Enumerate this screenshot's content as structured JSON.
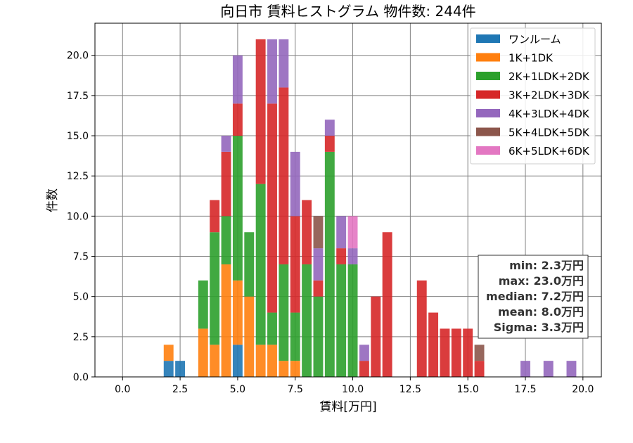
{
  "chart_data": {
    "type": "bar",
    "stacked": true,
    "title": "向日市 賃料ヒストグラム  物件数: 244件",
    "xlabel": "賃料[万円]",
    "ylabel": "件数",
    "xlim": [
      -1.2,
      20.8
    ],
    "ylim": [
      0,
      22
    ],
    "xticks": [
      "0.0",
      "2.5",
      "5.0",
      "7.5",
      "10.0",
      "12.5",
      "15.0",
      "17.5",
      "20.0"
    ],
    "yticks": [
      "0.0",
      "2.5",
      "5.0",
      "7.5",
      "10.0",
      "12.5",
      "15.0",
      "17.5",
      "20.0"
    ],
    "grid": true,
    "legend_position": "top-right",
    "bin_width": 0.5,
    "x": [
      2.0,
      2.5,
      3.5,
      4.0,
      4.5,
      5.0,
      5.5,
      6.0,
      6.5,
      7.0,
      7.5,
      8.0,
      8.5,
      9.0,
      9.5,
      10.0,
      10.5,
      11.0,
      11.5,
      13.0,
      13.5,
      14.0,
      14.5,
      15.0,
      15.5,
      17.5,
      18.5,
      19.5
    ],
    "series": [
      {
        "name": "ワンルーム",
        "color": "#1f77b4",
        "values": [
          1,
          1,
          0,
          0,
          0,
          2,
          0,
          0,
          0,
          0,
          0,
          0,
          0,
          0,
          0,
          0,
          0,
          0,
          0,
          0,
          0,
          0,
          0,
          0,
          0,
          0,
          0,
          0
        ]
      },
      {
        "name": "1K+1DK",
        "color": "#ff7f0e",
        "values": [
          1,
          0,
          3,
          2,
          7,
          4,
          5,
          2,
          2,
          1,
          1,
          0,
          0,
          0,
          0,
          0,
          0,
          0,
          0,
          0,
          0,
          0,
          0,
          0,
          0,
          0,
          0,
          0
        ]
      },
      {
        "name": "2K+1LDK+2DK",
        "color": "#2ca02c",
        "values": [
          0,
          0,
          3,
          7,
          3,
          9,
          4,
          10,
          2,
          6,
          3,
          7,
          5,
          14,
          7,
          7,
          0,
          0,
          0,
          0,
          0,
          0,
          0,
          0,
          0,
          0,
          0,
          0
        ]
      },
      {
        "name": "3K+2LDK+3DK",
        "color": "#d62728",
        "values": [
          0,
          0,
          0,
          2,
          4,
          2,
          0,
          9,
          13,
          11,
          6,
          4,
          1,
          1,
          1,
          0,
          1,
          5,
          9,
          6,
          4,
          3,
          3,
          3,
          1,
          0,
          0,
          0
        ]
      },
      {
        "name": "4K+3LDK+4DK",
        "color": "#9467bd",
        "values": [
          0,
          0,
          0,
          0,
          1,
          3,
          0,
          0,
          4,
          3,
          4,
          0,
          2,
          1,
          2,
          1,
          1,
          0,
          0,
          0,
          0,
          0,
          0,
          0,
          0,
          1,
          1,
          1
        ]
      },
      {
        "name": "5K+4LDK+5DK",
        "color": "#8c564b",
        "values": [
          0,
          0,
          0,
          0,
          0,
          0,
          0,
          0,
          0,
          0,
          0,
          0,
          2,
          0,
          0,
          0,
          0,
          0,
          0,
          0,
          0,
          0,
          0,
          0,
          1,
          0,
          0,
          0
        ]
      },
      {
        "name": "6K+5LDK+6DK",
        "color": "#e377c2",
        "values": [
          0,
          0,
          0,
          0,
          0,
          0,
          0,
          0,
          0,
          0,
          0,
          0,
          0,
          0,
          0,
          2,
          0,
          0,
          0,
          0,
          0,
          0,
          0,
          0,
          0,
          0,
          0,
          0
        ]
      }
    ],
    "stats": [
      "min: 2.3万円",
      "max: 23.0万円",
      "median: 7.2万円",
      "mean: 8.0万円",
      "Sigma: 3.3万円"
    ]
  }
}
